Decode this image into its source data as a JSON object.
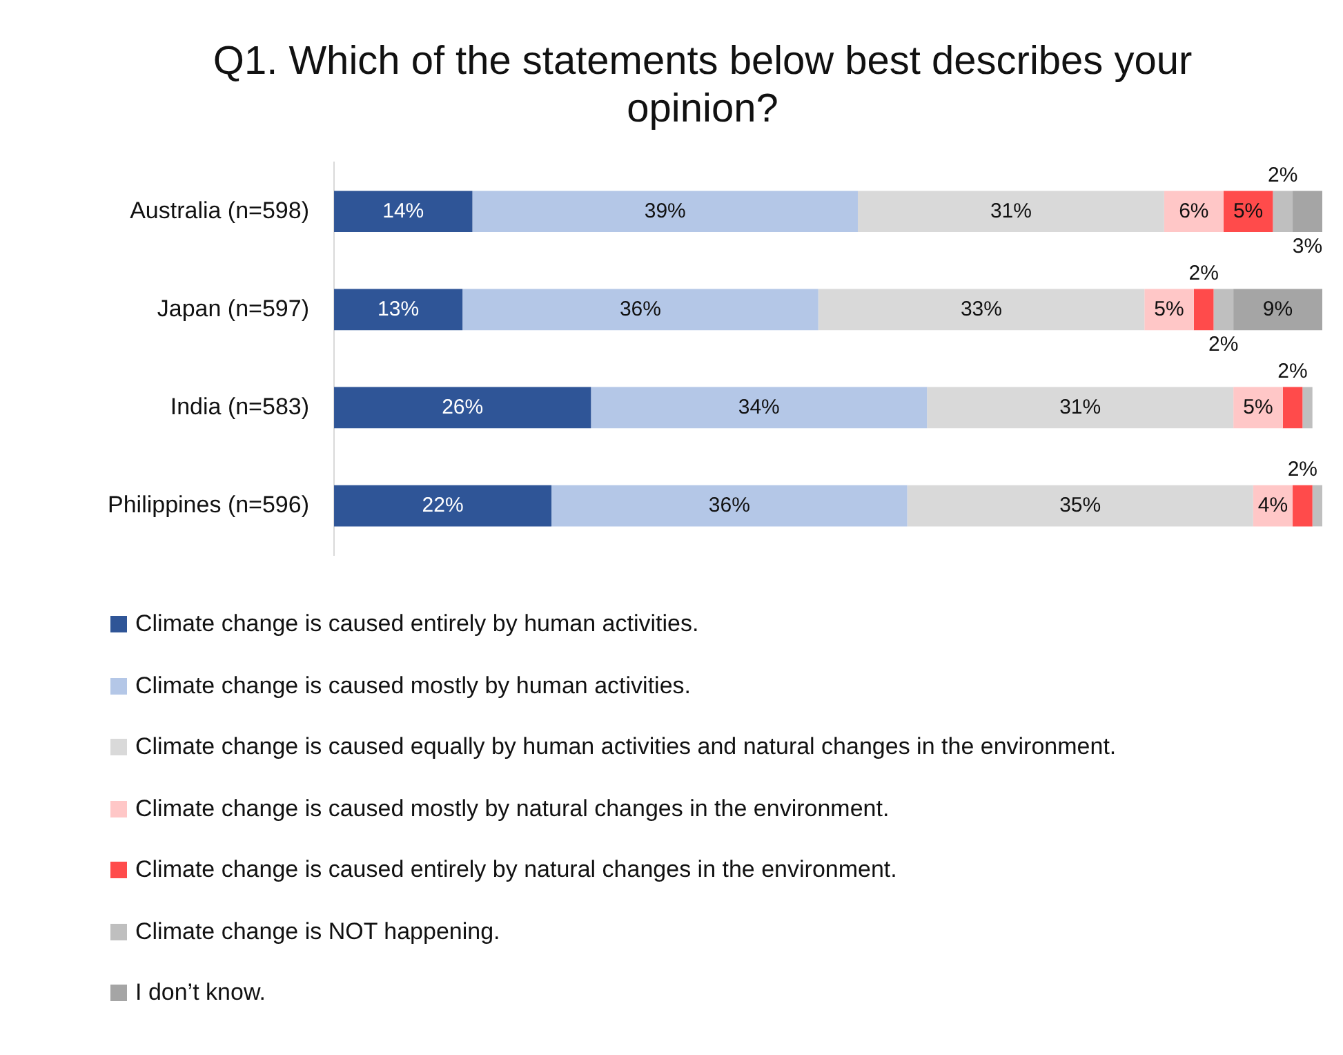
{
  "chart_data": {
    "type": "bar",
    "orientation": "horizontal",
    "stacked": true,
    "title": "Q1. Which of the statements below best describes your opinion?",
    "categories": [
      "Australia (n=598)",
      "Japan (n=597)",
      "India (n=583)",
      "Philippines (n=596)"
    ],
    "xlim": [
      0,
      100
    ],
    "tick_labels": "y",
    "grid": false,
    "legend": "bottom",
    "series": [
      {
        "name": "Climate change is caused entirely by human activities.",
        "color": "#2f5597",
        "values": [
          14,
          13,
          26,
          22
        ],
        "value_labels": [
          "14%",
          "13%",
          "26%",
          "22%"
        ]
      },
      {
        "name": "Climate change is caused mostly by human activities.",
        "color": "#b4c7e7",
        "values": [
          39,
          36,
          34,
          36
        ],
        "value_labels": [
          "39%",
          "36%",
          "34%",
          "36%"
        ]
      },
      {
        "name": "Climate change is caused equally by human activities and natural changes in the environment.",
        "color": "#d9d9d9",
        "values": [
          31,
          33,
          31,
          35
        ],
        "value_labels": [
          "31%",
          "33%",
          "31%",
          "35%"
        ]
      },
      {
        "name": "Climate change is caused mostly by natural changes in the environment.",
        "color": "#ffc7c7",
        "values": [
          6,
          5,
          5,
          4
        ],
        "value_labels": [
          "6%",
          "5%",
          "5%",
          "4%"
        ]
      },
      {
        "name": "Climate change is caused entirely by natural changes in the environment.",
        "color": "#ff4b4b",
        "values": [
          5,
          2,
          2,
          2
        ],
        "value_labels": [
          "5%",
          "2%",
          "2%",
          "2%"
        ]
      },
      {
        "name": "Climate change is NOT happening.",
        "color": "#bfbfbf",
        "values": [
          2,
          2,
          1,
          1
        ],
        "value_labels": [
          "2%",
          "2%",
          null,
          null
        ]
      },
      {
        "name": "I don’t know.",
        "color": "#a5a5a5",
        "values": [
          3,
          9,
          null,
          null
        ],
        "value_labels": [
          "3%",
          "9%",
          null,
          null
        ]
      }
    ]
  }
}
